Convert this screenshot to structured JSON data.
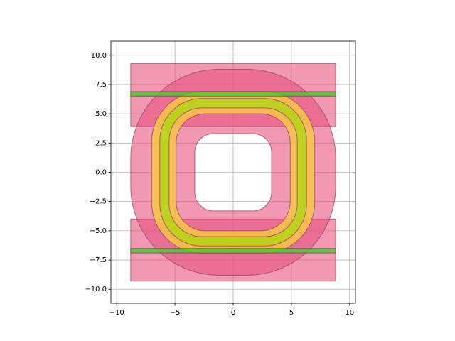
{
  "chart_data": {
    "type": "shapes",
    "xlim": [
      -10.5,
      10.5
    ],
    "ylim": [
      -11.2,
      11.2
    ],
    "xticks": [
      {
        "value": -10,
        "label": "−10"
      },
      {
        "value": -5,
        "label": "−5"
      },
      0,
      5,
      10
    ],
    "yticks": [
      {
        "value": -10,
        "label": "−10.0"
      },
      {
        "value": -7.5,
        "label": "−7.5"
      },
      {
        "value": -5,
        "label": "−5.0"
      },
      {
        "value": -2.5,
        "label": "−2.5"
      },
      {
        "value": 0,
        "label": "0.0"
      },
      {
        "value": 2.5,
        "label": "2.5"
      },
      {
        "value": 5,
        "label": "5.0"
      },
      {
        "value": 7.5,
        "label": "7.5"
      },
      {
        "value": 10,
        "label": "10.0"
      }
    ],
    "grid": true,
    "shapes": [
      {
        "outer": [
          -8.8,
          8.8,
          3.9,
          9.3,
          0
        ],
        "color": "#e75480",
        "opacity": 0.6
      },
      {
        "outer": [
          -8.8,
          8.8,
          -9.3,
          -4.0,
          0
        ],
        "color": "#e75480",
        "opacity": 0.6
      },
      {
        "outer": [
          -8.8,
          8.8,
          -8.8,
          8.8,
          7.6
        ],
        "inner": [
          -3.3,
          3.3,
          -3.3,
          3.3,
          1.6
        ],
        "color": "#e75480",
        "opacity": 0.6
      },
      {
        "outer": [
          -7,
          7,
          -6.9,
          6.9,
          4.3
        ],
        "inner": [
          -4.9,
          4.9,
          -5,
          5,
          2.5
        ],
        "color": "#f7c548",
        "opacity": 0.85
      },
      {
        "outer": [
          -6.3,
          6.3,
          -6.3,
          6.3,
          3.6
        ],
        "inner": [
          -5.5,
          5.5,
          -5.5,
          5.5,
          2.8
        ],
        "color": "#9be000",
        "opacity": 0.6
      },
      {
        "outer": [
          -8.8,
          8.8,
          6.5,
          6.9,
          0
        ],
        "color": "#4fc230",
        "opacity": 0.8
      },
      {
        "outer": [
          -8.8,
          8.8,
          -6.9,
          -6.5,
          0
        ],
        "color": "#4fc230",
        "opacity": 0.8
      }
    ]
  }
}
